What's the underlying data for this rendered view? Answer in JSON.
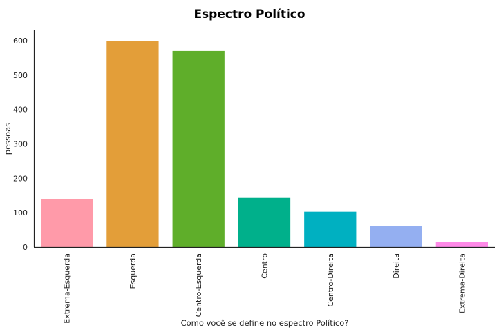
{
  "chart_data": {
    "type": "bar",
    "title": "Espectro Político",
    "xlabel": "Como você se define no espectro Político?",
    "ylabel": "pessoas",
    "categories": [
      "Extrema-Esquerda",
      "Esquerda",
      "Centro-Esquerda",
      "Centro",
      "Centro-Direita",
      "Direita",
      "Extrema-Direita"
    ],
    "values": [
      140,
      598,
      570,
      143,
      103,
      61,
      15
    ],
    "colors": [
      "#ff9aa9",
      "#e39e39",
      "#5fae2a",
      "#00b08b",
      "#00b0c1",
      "#94aff1",
      "#ff8ae8"
    ],
    "ylim": [
      0,
      630
    ],
    "yticks": [
      0,
      100,
      200,
      300,
      400,
      500,
      600
    ],
    "grid": false,
    "legend": "none"
  }
}
